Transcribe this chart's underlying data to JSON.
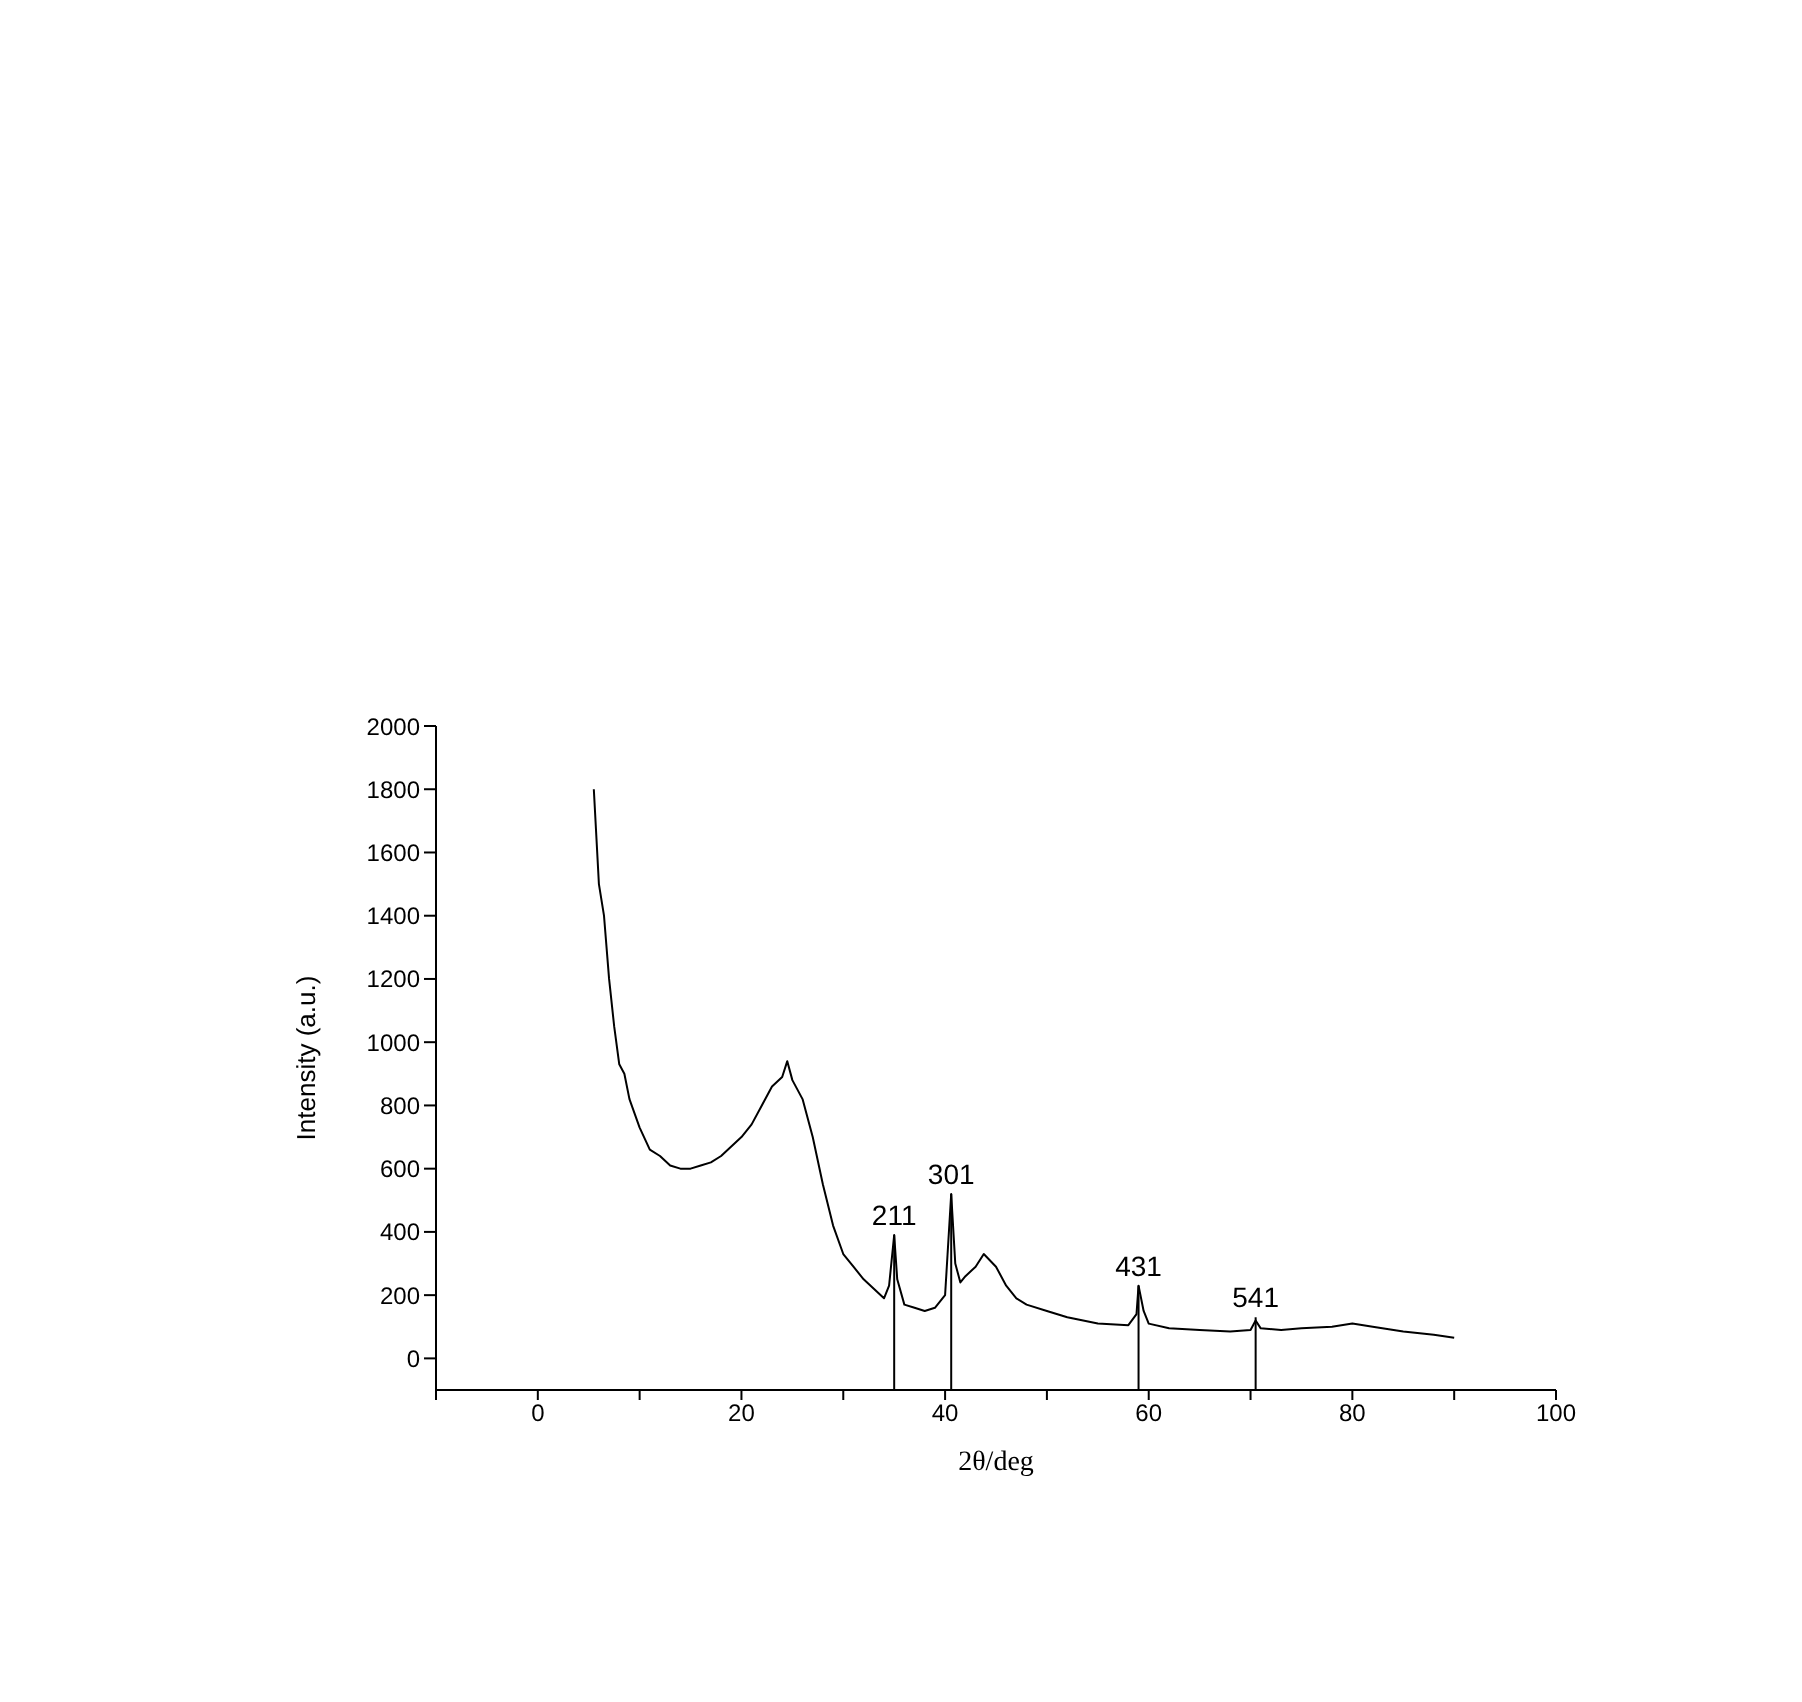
{
  "chart_data": {
    "type": "line",
    "xlabel": "2θ/deg",
    "ylabel": "Intensity (a.u.)",
    "x": [
      5.5,
      6,
      6.5,
      7,
      7.5,
      8,
      8.5,
      9,
      10,
      11,
      12,
      13,
      14,
      15,
      16,
      17,
      18,
      19,
      20,
      21,
      22,
      23,
      24,
      24.5,
      25,
      26,
      27,
      28,
      29,
      30,
      31,
      32,
      33,
      34,
      34.5,
      35,
      35.3,
      36,
      37,
      38,
      39,
      40,
      40.6,
      41,
      41.5,
      42,
      43,
      43.8,
      45,
      46,
      47,
      48,
      50,
      52,
      55,
      58,
      58.8,
      59,
      59.5,
      60,
      62,
      65,
      68,
      70,
      70.5,
      71,
      73,
      75,
      78,
      80,
      82,
      85,
      88,
      90
    ],
    "series": [
      {
        "color": "#000000",
        "values": [
          1800,
          1500,
          1400,
          1200,
          1050,
          930,
          900,
          820,
          730,
          660,
          640,
          610,
          600,
          600,
          610,
          620,
          640,
          670,
          700,
          740,
          800,
          860,
          890,
          940,
          880,
          820,
          700,
          550,
          420,
          330,
          290,
          250,
          220,
          190,
          230,
          390,
          250,
          170,
          160,
          150,
          160,
          200,
          520,
          300,
          240,
          260,
          290,
          330,
          290,
          230,
          190,
          170,
          150,
          130,
          110,
          105,
          140,
          230,
          150,
          110,
          95,
          90,
          85,
          90,
          120,
          95,
          90,
          95,
          100,
          110,
          100,
          85,
          75,
          65
        ]
      }
    ],
    "annotations": [
      {
        "text": "211",
        "x": 35,
        "y": 390
      },
      {
        "text": "301",
        "x": 40.6,
        "y": 520
      },
      {
        "text": "431",
        "x": 59,
        "y": 230
      },
      {
        "text": "541",
        "x": 70.5,
        "y": 130
      }
    ],
    "xlim": [
      -10,
      100
    ],
    "xticks": [
      {
        "value": -10,
        "label": null
      },
      0,
      {
        "value": 10,
        "label": null
      },
      20,
      {
        "value": 30,
        "label": null
      },
      40,
      {
        "value": 50,
        "label": null
      },
      60,
      {
        "value": 70,
        "label": null
      },
      80,
      {
        "value": 90,
        "label": null
      },
      100
    ],
    "ylim": [
      -100,
      2000
    ],
    "yticks": [
      0,
      200,
      400,
      600,
      800,
      1000,
      1200,
      1400,
      1600,
      1800,
      2000
    ],
    "grid": false,
    "legend": false,
    "marker": "none",
    "line_style": "solid"
  }
}
